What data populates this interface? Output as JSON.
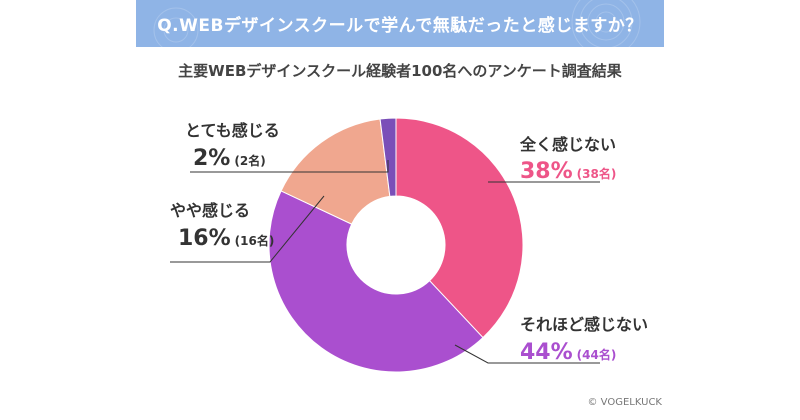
{
  "header": {
    "title": "Q.WEBデザインスクールで学んで無駄だったと感じますか？",
    "subtitle": "主要WEBデザインスクール経験者100名へのアンケート調査結果"
  },
  "credit": "© VOGELKUCK",
  "chart_data": {
    "type": "pie",
    "title": "Q.WEBデザインスクールで学んで無駄だったと感じますか？",
    "subtitle": "主要WEBデザインスクール経験者100名へのアンケート調査結果",
    "donut": true,
    "slices": [
      {
        "label": "全く感じない",
        "value": 38,
        "pct_text": "38%",
        "count_text": "(38名)",
        "color": "#ee5588",
        "text_color": "#ee5588"
      },
      {
        "label": "それほど感じない",
        "value": 44,
        "pct_text": "44%",
        "count_text": "(44名)",
        "color": "#aa4fcf",
        "text_color": "#aa4fcf"
      },
      {
        "label": "やや感じる",
        "value": 16,
        "pct_text": "16%",
        "count_text": "(16名)",
        "color": "#f0a78f",
        "text_color": "#333333"
      },
      {
        "label": "とても感じる",
        "value": 2,
        "pct_text": "2%",
        "count_text": "(2名)",
        "color": "#7a4fb8",
        "text_color": "#333333"
      }
    ]
  }
}
